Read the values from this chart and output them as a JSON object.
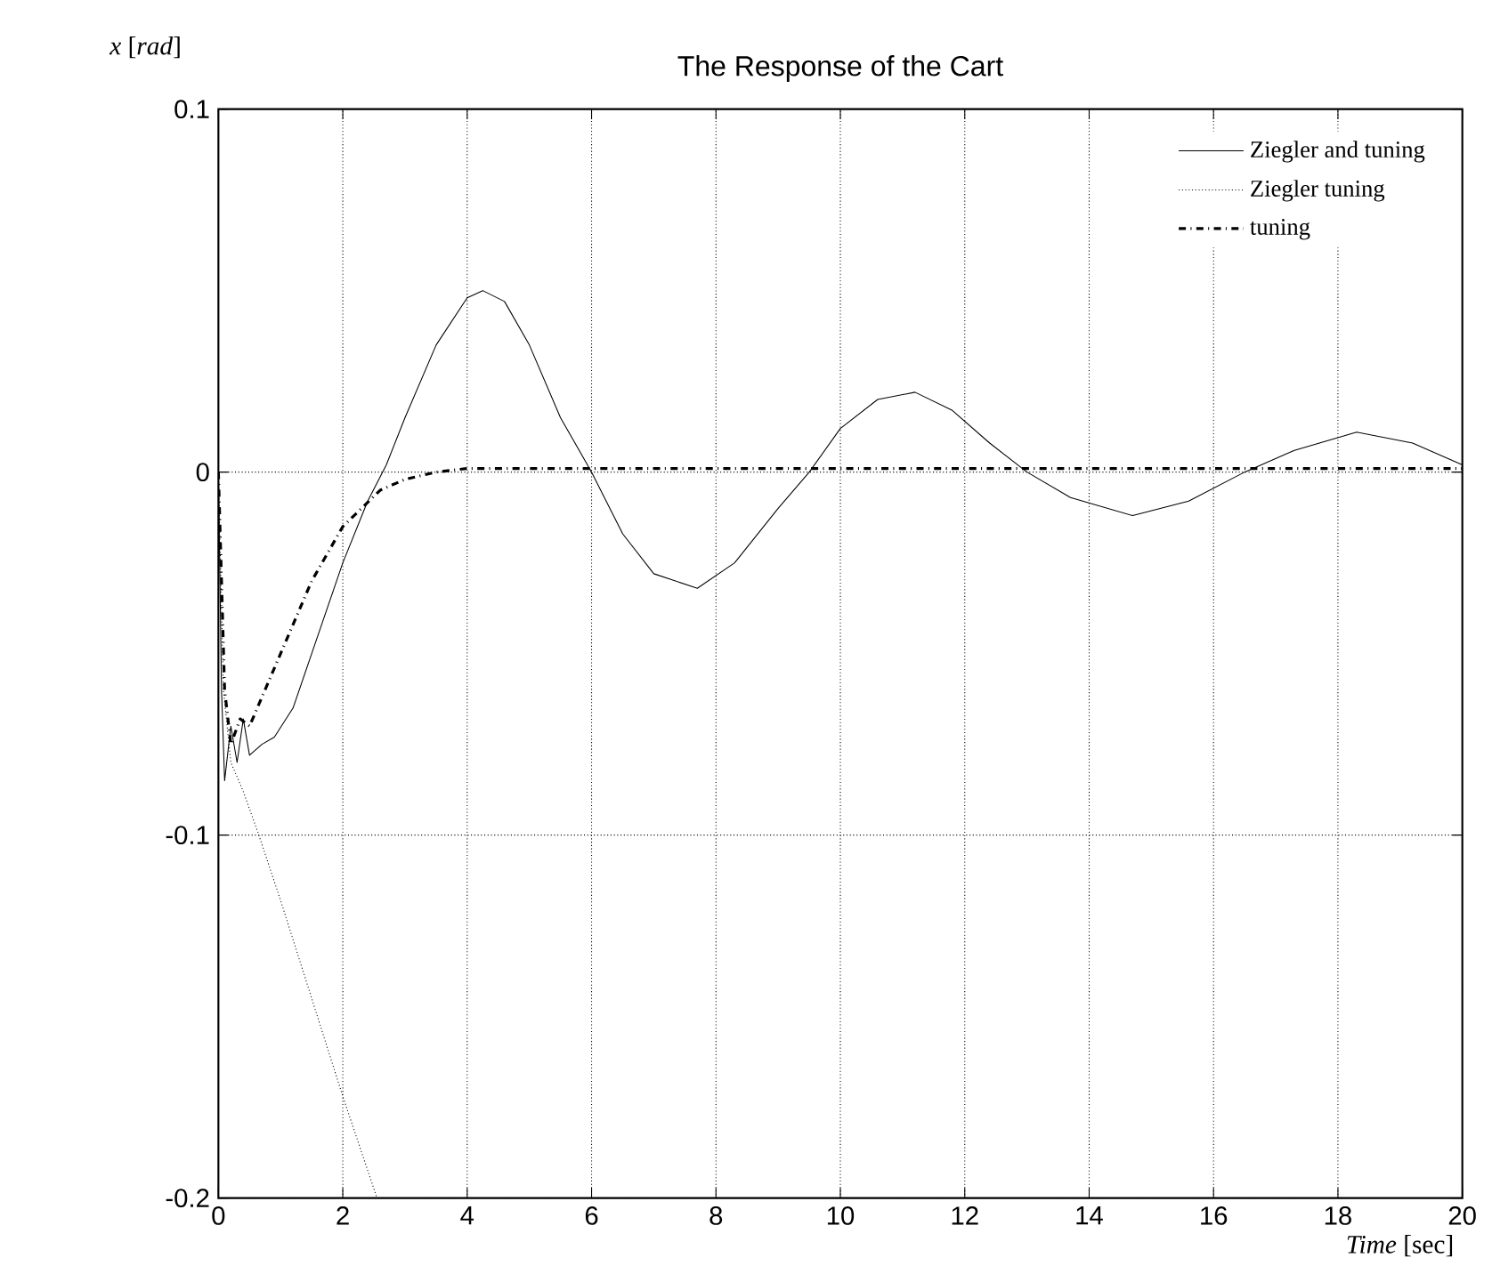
{
  "chart_data": {
    "type": "line",
    "title": "The Response of the Cart",
    "xlabel": "*Time* [sec]",
    "ylabel": "*x* [*rad*]",
    "xlim": [
      0,
      20
    ],
    "ylim": [
      -0.2,
      0.1
    ],
    "xticks": [
      0,
      2,
      4,
      6,
      8,
      10,
      12,
      14,
      16,
      18,
      20
    ],
    "yticks": [
      -0.2,
      -0.1,
      0,
      0.1
    ],
    "grid": true,
    "legend": "top right",
    "series": [
      {
        "name": "Ziegler and tuning",
        "color": "#000000",
        "line_style": "solid",
        "x": [
          0,
          0.05,
          0.1,
          0.2,
          0.3,
          0.4,
          0.5,
          0.7,
          0.9,
          1.2,
          1.5,
          2.0,
          2.4,
          2.7,
          3.0,
          3.5,
          4.0,
          4.25,
          4.6,
          5.0,
          5.5,
          6.0,
          6.5,
          7.0,
          7.7,
          8.3,
          9.0,
          9.5,
          10.0,
          10.6,
          11.2,
          11.8,
          12.4,
          13.0,
          13.7,
          14.7,
          15.6,
          16.5,
          17.3,
          18.3,
          19.2,
          20.0
        ],
        "values": [
          0,
          -0.06,
          -0.085,
          -0.07,
          -0.08,
          -0.068,
          -0.078,
          -0.075,
          -0.073,
          -0.065,
          -0.05,
          -0.025,
          -0.008,
          0.002,
          0.015,
          0.035,
          0.048,
          0.05,
          0.047,
          0.035,
          0.015,
          0.0,
          -0.017,
          -0.028,
          -0.032,
          -0.025,
          -0.01,
          0.0,
          0.012,
          0.02,
          0.022,
          0.017,
          0.008,
          0.0,
          -0.007,
          -0.012,
          -0.008,
          0.0,
          0.006,
          0.011,
          0.008,
          0.002
        ]
      },
      {
        "name": "Ziegler tuning",
        "color": "#000000",
        "line_style": "dotted",
        "x": [
          0,
          0.08,
          0.2,
          0.4,
          0.65,
          1.0,
          1.5,
          2.0,
          2.55
        ],
        "values": [
          0,
          -0.06,
          -0.08,
          -0.088,
          -0.1,
          -0.118,
          -0.145,
          -0.172,
          -0.2
        ]
      },
      {
        "name": "tuning",
        "color": "#000000",
        "line_style": "dashdot",
        "x": [
          0,
          0.1,
          0.2,
          0.35,
          0.5,
          0.75,
          1.0,
          1.5,
          2.0,
          2.6,
          3.0,
          3.5,
          4.0,
          6.0,
          8.0,
          10.0,
          12.0,
          14.0,
          16.0,
          18.0,
          20.0
        ],
        "values": [
          0,
          -0.06,
          -0.075,
          -0.068,
          -0.07,
          -0.06,
          -0.05,
          -0.03,
          -0.015,
          -0.005,
          -0.002,
          0.0,
          0.001,
          0.001,
          0.001,
          0.001,
          0.001,
          0.001,
          0.001,
          0.001,
          0.001
        ]
      }
    ]
  }
}
